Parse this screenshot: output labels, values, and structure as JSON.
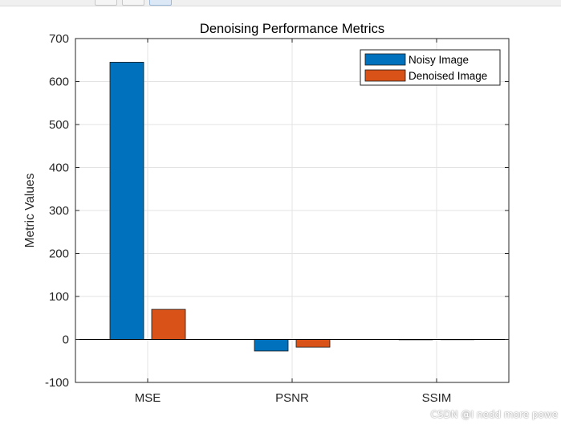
{
  "chart_data": {
    "type": "bar",
    "title": "Denoising Performance Metrics",
    "xlabel": "",
    "ylabel": "Metric Values",
    "categories": [
      "MSE",
      "PSNR",
      "SSIM"
    ],
    "series": [
      {
        "name": "Noisy Image",
        "values": [
          645,
          -27,
          0.1
        ],
        "color": "#0072BD"
      },
      {
        "name": "Denoised Image",
        "values": [
          70,
          -18,
          0.3
        ],
        "color": "#D95319"
      }
    ],
    "ylim": [
      -100,
      700
    ],
    "yticks": [
      -100,
      0,
      100,
      200,
      300,
      400,
      500,
      600,
      700
    ],
    "grid": true,
    "legend_position": "top-right"
  },
  "watermark": "CSDN @I nedd more powe"
}
